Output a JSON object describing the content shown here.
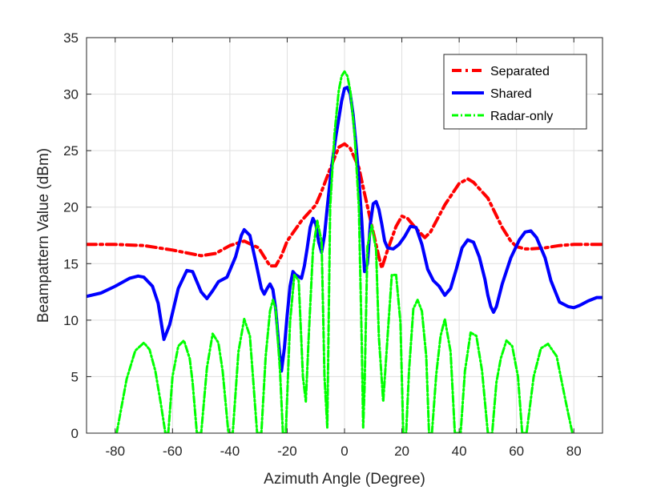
{
  "chart_data": {
    "type": "line",
    "title": "",
    "xlabel": "Azimuth Angle (Degree)",
    "ylabel": "Beampattern Value (dBm)",
    "xlim": [
      -90,
      90
    ],
    "ylim": [
      0,
      35
    ],
    "xticks": [
      -80,
      -60,
      -40,
      -20,
      0,
      20,
      40,
      60,
      80
    ],
    "yticks": [
      0,
      5,
      10,
      15,
      20,
      25,
      30,
      35
    ],
    "grid": true,
    "legend_position": "top-right",
    "series": [
      {
        "name": "Separated",
        "color": "#ff0000",
        "style": "dashdot",
        "x": [
          -90,
          -80,
          -70,
          -60,
          -50,
          -45,
          -40,
          -35,
          -30,
          -28,
          -26,
          -24,
          -22,
          -20,
          -15,
          -10,
          -8,
          -5,
          -2,
          0,
          2,
          5,
          7,
          10,
          12,
          13,
          15,
          18,
          20,
          22,
          25,
          28,
          30,
          35,
          40,
          43,
          45,
          50,
          55,
          58,
          60,
          63,
          65,
          70,
          75,
          80,
          85,
          90
        ],
        "y": [
          16.7,
          16.7,
          16.6,
          16.2,
          15.7,
          15.9,
          16.6,
          17.0,
          16.4,
          15.6,
          14.8,
          14.8,
          15.7,
          17.0,
          18.8,
          20.2,
          21.4,
          23.4,
          25.3,
          25.6,
          25.2,
          23.5,
          21.2,
          17.8,
          15.6,
          14.6,
          16.2,
          18.3,
          19.2,
          19.0,
          18.1,
          17.3,
          17.8,
          20.2,
          22.1,
          22.5,
          22.2,
          20.8,
          18.2,
          17.0,
          16.5,
          16.3,
          16.3,
          16.4,
          16.6,
          16.7,
          16.7,
          16.7
        ]
      },
      {
        "name": "Shared",
        "color": "#0000ff",
        "style": "solid",
        "x": [
          -90,
          -85,
          -80,
          -75,
          -72,
          -70,
          -67,
          -65,
          -63,
          -61,
          -58,
          -55,
          -53,
          -50,
          -48,
          -46,
          -44,
          -41,
          -38,
          -36,
          -35,
          -33,
          -31,
          -29,
          -28,
          -27,
          -26,
          -25,
          -24,
          -23,
          -22,
          -21,
          -20,
          -19,
          -18,
          -17,
          -15,
          -14,
          -13,
          -12,
          -11,
          -10,
          -9,
          -8,
          -7,
          -6,
          -5,
          -4,
          -3,
          -2,
          -1,
          0,
          1,
          2,
          3,
          4,
          5,
          6,
          7,
          8,
          9,
          10,
          11,
          12,
          13,
          14,
          15,
          17,
          19,
          21,
          23,
          25,
          27,
          29,
          31,
          33,
          35,
          37,
          39,
          41,
          43,
          45,
          47,
          49,
          50,
          51,
          52,
          53,
          55,
          58,
          61,
          63,
          65,
          67,
          70,
          72,
          75,
          78,
          80,
          82,
          85,
          88,
          90
        ],
        "y": [
          12.1,
          12.4,
          13.0,
          13.7,
          13.9,
          13.8,
          13.0,
          11.5,
          8.3,
          9.6,
          12.8,
          14.4,
          14.3,
          12.5,
          11.9,
          12.6,
          13.4,
          13.8,
          15.6,
          17.5,
          18.0,
          17.5,
          15.2,
          12.8,
          12.3,
          12.8,
          13.2,
          12.7,
          11.0,
          8.0,
          5.5,
          7.5,
          10.4,
          13.0,
          14.3,
          14.0,
          13.7,
          14.8,
          16.4,
          18.2,
          19.0,
          18.5,
          16.9,
          16.0,
          17.5,
          20.0,
          22.4,
          24.5,
          26.3,
          27.8,
          29.4,
          30.5,
          30.6,
          30.0,
          28.2,
          25.5,
          22.6,
          18.8,
          14.3,
          15.0,
          18.5,
          20.3,
          20.5,
          19.8,
          18.5,
          17.0,
          16.4,
          16.3,
          16.7,
          17.4,
          18.3,
          18.2,
          16.7,
          14.5,
          13.5,
          13.0,
          12.2,
          12.8,
          14.5,
          16.4,
          17.1,
          16.9,
          15.6,
          13.6,
          12.2,
          11.2,
          10.7,
          11.2,
          13.2,
          15.5,
          17.1,
          17.8,
          17.9,
          17.3,
          15.5,
          13.5,
          11.6,
          11.2,
          11.1,
          11.3,
          11.7,
          12.0,
          12.0
        ]
      },
      {
        "name": "Radar-only",
        "color": "#00ff00",
        "style": "dashdot",
        "x": [
          -79.5,
          -76,
          -73,
          -70,
          -68,
          -66,
          -64,
          -62.5,
          -61.5,
          -60,
          -58,
          -56,
          -54,
          -53,
          -51.5,
          -50,
          -48,
          -46,
          -44,
          -42.5,
          -40.5,
          -39,
          -37,
          -35,
          -33,
          -32,
          -30.5,
          -29,
          -27.5,
          -26,
          -25,
          -24,
          -22.5,
          -21.5,
          -20.5,
          -19,
          -17.5,
          -16,
          -14.5,
          -13.5,
          -12.5,
          -11,
          -9.5,
          -8,
          -7,
          -6,
          -5,
          -3.5,
          -2,
          -1,
          0,
          1,
          2,
          3.5,
          5,
          6,
          6.5,
          7,
          8,
          9.5,
          11,
          12,
          13.5,
          15,
          16.5,
          18,
          19.5,
          20.5,
          21.5,
          22.5,
          24,
          25.5,
          27,
          28.5,
          29.5,
          30.5,
          32,
          33.5,
          35,
          37,
          38.5,
          40.5,
          42,
          44,
          46,
          48,
          50,
          51.5,
          53,
          54.5,
          56.5,
          58.5,
          60.5,
          62,
          63.5,
          66,
          68.5,
          71,
          74,
          77,
          79.5
        ],
        "y": [
          0,
          4.8,
          7.3,
          8.0,
          7.4,
          5.5,
          2.5,
          0,
          0,
          5.0,
          7.7,
          8.2,
          6.6,
          4.5,
          0,
          0,
          5.8,
          8.8,
          8.0,
          5.5,
          0,
          0,
          7.2,
          10.1,
          8.6,
          5.2,
          0,
          0,
          6.8,
          10.8,
          11.8,
          11.0,
          5.5,
          0,
          0,
          9.8,
          14.0,
          13.5,
          5.0,
          2.8,
          8.5,
          16.2,
          18.8,
          17.0,
          5.0,
          0.5,
          20.0,
          26.5,
          30.3,
          31.6,
          32.0,
          31.6,
          30.3,
          26.5,
          20.0,
          8.0,
          0.5,
          4.0,
          16.5,
          18.4,
          16.2,
          8.5,
          2.8,
          8.5,
          14.0,
          14.0,
          9.8,
          0,
          0,
          5.5,
          11.0,
          11.8,
          10.8,
          6.8,
          0,
          0,
          5.2,
          8.6,
          10.1,
          7.2,
          0,
          0,
          5.5,
          8.9,
          8.6,
          5.5,
          0,
          0,
          4.5,
          6.6,
          8.2,
          7.7,
          5.0,
          0,
          0,
          5.0,
          7.5,
          7.9,
          6.8,
          3.0,
          0
        ]
      }
    ]
  }
}
